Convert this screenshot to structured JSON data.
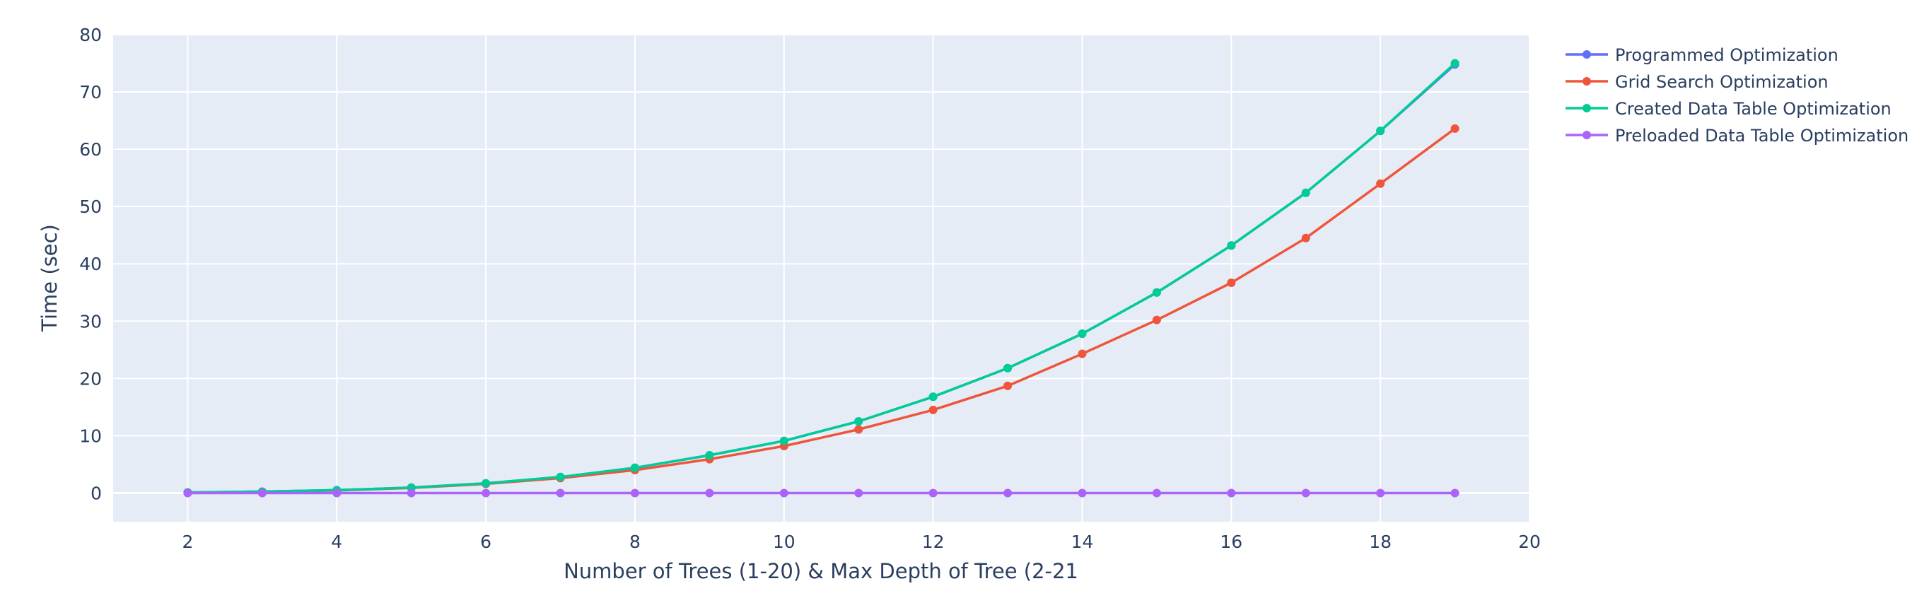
{
  "chart_data": {
    "type": "line",
    "title": "",
    "xlabel": "Number of Trees (1-20) & Max Depth of Tree (2-21",
    "ylabel": "Time (sec)",
    "xlim": [
      1,
      20
    ],
    "ylim": [
      -5,
      80
    ],
    "x_ticks": [
      2,
      4,
      6,
      8,
      10,
      12,
      14,
      16,
      18,
      20
    ],
    "y_ticks": [
      0,
      10,
      20,
      30,
      40,
      50,
      60,
      70,
      80
    ],
    "grid": true,
    "legend_position": "top-right",
    "plot_background": "#e5ecf6",
    "x": [
      2,
      3,
      4,
      5,
      6,
      7,
      8,
      9,
      10,
      11,
      12,
      13,
      14,
      15,
      16,
      17,
      18,
      19
    ],
    "series": [
      {
        "name": "Programmed Optimization",
        "color": "#636efa",
        "values": [
          0.1,
          0.25,
          0.5,
          0.95,
          1.7,
          2.8,
          4.4,
          6.6,
          9.1,
          12.5,
          16.8,
          21.8,
          27.8,
          35.0,
          43.2,
          52.4,
          63.2,
          74.8
        ]
      },
      {
        "name": "Grid Search Optimization",
        "color": "#ef553b",
        "values": [
          0.1,
          0.2,
          0.45,
          0.9,
          1.6,
          2.6,
          4.0,
          5.9,
          8.2,
          11.1,
          14.5,
          18.7,
          24.3,
          30.2,
          36.7,
          44.5,
          54.0,
          63.6
        ]
      },
      {
        "name": "Created Data Table Optimization",
        "color": "#00cc96",
        "values": [
          0.1,
          0.25,
          0.5,
          0.95,
          1.7,
          2.8,
          4.4,
          6.6,
          9.1,
          12.5,
          16.8,
          21.8,
          27.8,
          35.0,
          43.2,
          52.4,
          63.2,
          75.0
        ]
      },
      {
        "name": "Preloaded Data Table Optimization",
        "color": "#ab63fa",
        "values": [
          0,
          0,
          0,
          0,
          0,
          0,
          0,
          0,
          0,
          0,
          0,
          0,
          0,
          0,
          0,
          0,
          0,
          0
        ]
      }
    ]
  }
}
